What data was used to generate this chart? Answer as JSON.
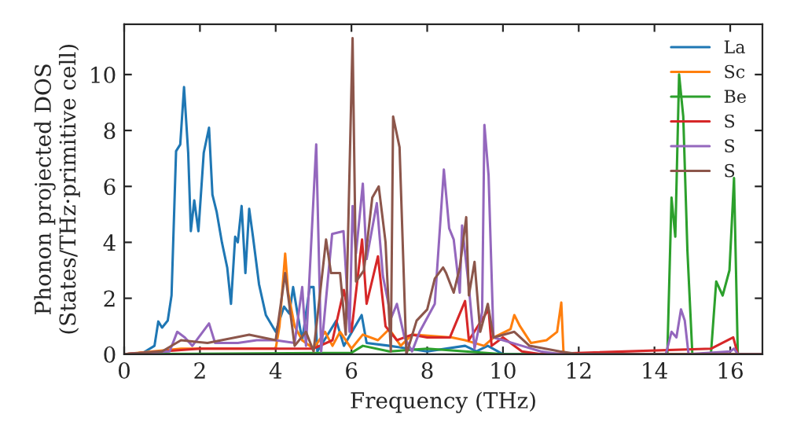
{
  "chart_data": {
    "type": "line",
    "xlabel": "Frequency (THz)",
    "ylabel": "Phonon projected DOS\n(States/THz·primitive cell)",
    "xlim": [
      0,
      16.85
    ],
    "ylim": [
      0,
      11.8
    ],
    "xticks": [
      0,
      2,
      4,
      6,
      8,
      10,
      12,
      14,
      16
    ],
    "yticks": [
      0,
      2,
      4,
      6,
      8,
      10
    ],
    "grid": false,
    "legend": "top right",
    "marker": "none",
    "line_style": "solid",
    "series": [
      {
        "name": "La",
        "color": "#1f77b4",
        "x": [
          0,
          0.5,
          0.8,
          0.9,
          1.0,
          1.15,
          1.25,
          1.37,
          1.48,
          1.58,
          1.69,
          1.76,
          1.85,
          1.96,
          2.1,
          2.24,
          2.33,
          2.44,
          2.58,
          2.72,
          2.82,
          2.93,
          3.0,
          3.1,
          3.2,
          3.3,
          3.4,
          3.56,
          3.74,
          4.0,
          4.22,
          4.36,
          4.46,
          4.57,
          4.7,
          4.9,
          5.0,
          5.1,
          5.6,
          5.8,
          6.27,
          6.4,
          7.0,
          8.0,
          9.0,
          9.3,
          9.6,
          10.0,
          16.85
        ],
        "values": [
          0,
          0.05,
          0.3,
          1.17,
          0.95,
          1.2,
          2.1,
          7.26,
          7.5,
          9.55,
          7.2,
          4.4,
          5.5,
          4.4,
          7.2,
          8.1,
          5.7,
          5.1,
          4.0,
          3.1,
          1.8,
          4.2,
          4.0,
          5.3,
          2.9,
          5.2,
          4.2,
          2.5,
          1.4,
          0.8,
          1.7,
          1.45,
          2.4,
          1.5,
          0.5,
          2.4,
          2.4,
          0.1,
          1.2,
          0.3,
          1.4,
          0.4,
          0.3,
          0.1,
          0.3,
          0.1,
          0.3,
          0,
          0
        ]
      },
      {
        "name": "Sc",
        "color": "#ff7f0e",
        "x": [
          0,
          1.5,
          3.0,
          4.0,
          4.1,
          4.25,
          4.33,
          4.5,
          4.7,
          5.0,
          5.3,
          5.5,
          5.7,
          6.0,
          6.3,
          6.7,
          7.0,
          7.3,
          7.6,
          8.65,
          9.0,
          9.5,
          9.76,
          10.2,
          10.3,
          10.45,
          10.74,
          11.15,
          11.43,
          11.54,
          11.6,
          16.85
        ],
        "values": [
          0,
          0.2,
          0.2,
          0.2,
          1.0,
          3.6,
          2.2,
          1.0,
          0.5,
          0.2,
          0.8,
          0.3,
          0.8,
          0.2,
          0.7,
          0.5,
          0.9,
          0.3,
          0.7,
          0.6,
          0.5,
          0.3,
          0.6,
          0.9,
          1.4,
          1.0,
          0.4,
          0.5,
          0.8,
          1.85,
          0,
          0
        ]
      },
      {
        "name": "Be",
        "color": "#2ca02c",
        "x": [
          0,
          6.0,
          6.3,
          7.0,
          8.0,
          9.0,
          10.0,
          14.34,
          14.45,
          14.55,
          14.65,
          14.76,
          14.87,
          15.0,
          15.49,
          15.63,
          15.8,
          15.98,
          16.1,
          16.2,
          16.85
        ],
        "values": [
          0,
          0.05,
          0.3,
          0.1,
          0.2,
          0.1,
          0,
          0,
          5.6,
          4.2,
          10.0,
          8.5,
          3.7,
          0,
          0,
          2.6,
          2.1,
          3.0,
          6.3,
          0,
          0
        ]
      },
      {
        "name": "S",
        "color": "#d62728",
        "x": [
          0,
          2.0,
          5.0,
          5.5,
          5.8,
          6.0,
          6.28,
          6.4,
          6.7,
          6.9,
          7.2,
          7.6,
          8.0,
          8.6,
          9.0,
          9.1,
          9.62,
          9.7,
          10.0,
          10.5,
          11.0,
          15.5,
          16.08,
          16.2,
          16.85
        ],
        "values": [
          0,
          0.2,
          0.2,
          0.5,
          2.3,
          0.8,
          4.1,
          1.8,
          3.5,
          1.0,
          0.5,
          0.7,
          0.6,
          0.6,
          1.9,
          0.5,
          1.6,
          0.3,
          0.6,
          0.1,
          0,
          0.2,
          0.6,
          0,
          0
        ]
      },
      {
        "name": "S",
        "color": "#9467bd",
        "x": [
          0,
          1.2,
          1.4,
          1.6,
          1.8,
          2.24,
          2.4,
          3.0,
          3.5,
          4.0,
          4.5,
          4.7,
          4.8,
          5.07,
          5.2,
          5.49,
          5.79,
          5.95,
          6.03,
          6.12,
          6.3,
          6.4,
          6.67,
          6.83,
          7.05,
          7.2,
          7.4,
          7.6,
          7.8,
          8.2,
          8.44,
          8.58,
          8.7,
          8.86,
          8.92,
          9.1,
          9.25,
          9.45,
          9.51,
          9.62,
          9.75,
          10.0,
          10.5,
          11.0,
          11.5,
          14.3,
          14.45,
          14.58,
          14.7,
          14.8,
          14.9,
          16.0,
          16.1,
          16.2,
          16.85
        ],
        "values": [
          0,
          0.1,
          0.8,
          0.6,
          0.3,
          1.1,
          0.4,
          0.4,
          0.5,
          0.5,
          0.4,
          2.4,
          0.3,
          7.5,
          0.1,
          4.3,
          4.4,
          0.8,
          5.3,
          3.6,
          6.1,
          3.4,
          5.4,
          2.8,
          1.3,
          1.8,
          0.6,
          0.1,
          0.8,
          1.8,
          6.6,
          4.5,
          4.1,
          2.2,
          4.6,
          2.4,
          0.2,
          1.5,
          8.2,
          6.4,
          0.6,
          0.5,
          0.3,
          0.1,
          0,
          0,
          0.8,
          0.6,
          1.6,
          1.2,
          0,
          0.1,
          0.2,
          0,
          0
        ]
      },
      {
        "name": "S",
        "color": "#8c564b",
        "x": [
          0,
          1.0,
          1.5,
          2.2,
          3.3,
          4.0,
          4.25,
          4.5,
          4.8,
          5.0,
          5.33,
          5.46,
          5.7,
          5.85,
          6.03,
          6.12,
          6.33,
          6.55,
          6.72,
          6.9,
          7.04,
          7.1,
          7.27,
          7.45,
          7.72,
          8.0,
          8.2,
          8.42,
          8.5,
          8.7,
          8.86,
          9.03,
          9.1,
          9.25,
          9.4,
          9.6,
          9.75,
          10.3,
          10.7,
          11.5,
          12.0,
          16.85
        ],
        "values": [
          0,
          0.1,
          0.5,
          0.4,
          0.7,
          0.5,
          2.9,
          0.3,
          0.8,
          0.1,
          4.1,
          2.9,
          2.9,
          0.7,
          11.3,
          2.6,
          3.0,
          5.6,
          6.0,
          4.0,
          0.1,
          8.5,
          7.4,
          0,
          1.2,
          1.6,
          2.7,
          3.1,
          2.9,
          2.2,
          3.1,
          4.9,
          2.1,
          3.3,
          0.8,
          1.8,
          0.6,
          0.8,
          0.3,
          0.1,
          0,
          0
        ]
      }
    ]
  }
}
